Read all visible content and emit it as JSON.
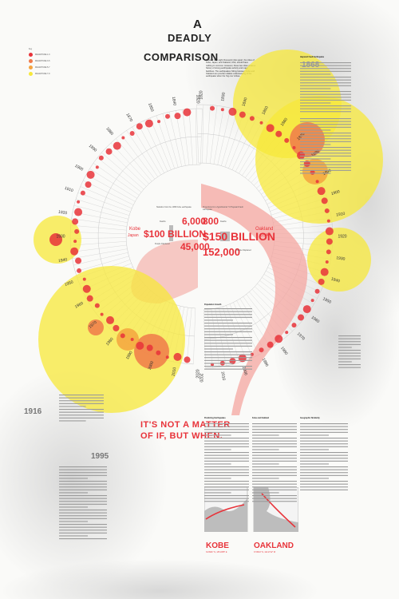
{
  "title": {
    "line1": "A",
    "line2": "DEADLY",
    "line3": "COMPARISON"
  },
  "legend": {
    "heading": "Key",
    "items": [
      {
        "label": "MAGNITUDE 1-3",
        "color": "#e8333a"
      },
      {
        "label": "MAGNITUDE 3-5",
        "color": "#f07a4a"
      },
      {
        "label": "MAGNITUDE 5-7",
        "color": "#f5a440"
      },
      {
        "label": "MAGNITUDE 7-9",
        "color": "#f7e83a"
      }
    ]
  },
  "left_years": [
    "1820",
    "1840",
    "1850",
    "1870",
    "1880",
    "1890",
    "1900",
    "1910",
    "1920",
    "1930",
    "1940",
    "1950",
    "1960",
    "1970",
    "1980",
    "1990",
    "2000",
    "2010",
    "2020"
  ],
  "right_years": [
    "1820",
    "1830",
    "1840",
    "1850",
    "1860",
    "1870",
    "1880",
    "1890",
    "1900",
    "1910",
    "1920",
    "1930",
    "1940",
    "1950",
    "1960",
    "1970",
    "1980",
    "1990",
    "2000",
    "2010",
    "2020"
  ],
  "kobe": {
    "city": "Kobe",
    "country": "Japan",
    "deaths_label": "Deaths",
    "deaths": "6,000",
    "damages_label": "In Damages",
    "damages": "$100 BILLION",
    "displaced_label": "People Displaced",
    "displaced": "45,000",
    "intro": "Statistics from the 1995 Kobe earthquake"
  },
  "oakland": {
    "city": "Oakland",
    "country": "USA",
    "deaths_label": "Deaths",
    "deaths": "800",
    "damages_label": "In Damages",
    "damages": "$150 BILLION",
    "displaced_label": "People Displaced",
    "displaced": "152,000",
    "intro": "Projections for a hypothetical 7.0 Hayward Fault earthquake"
  },
  "tagline": {
    "line1": "IT'S NOT A MATTER",
    "line2": "OF IF, BUT WHEN."
  },
  "year_left": "1916",
  "year_right": "1868",
  "year_bottom": "1995",
  "map_labels": {
    "kobe": "KOBE",
    "oakland": "OAKLAND",
    "kobe_coords": "34.6901° N, 135.1955° E",
    "oakland_coords": "37.8044° N, 122.2712° W"
  },
  "section_heads": {
    "a": "Predicting Earthquakes",
    "b": "Kobe and Oakland",
    "c": "Geographic Similarity",
    "d": "Hayward Fault Earthquake",
    "e": "Population Growth"
  },
  "intro_text": "Located over eight thousand miles apart, the cities of Kobe, Japan, and Oakland, USA, should have nothing in common. However, these two cities share a history of strong earthquake activity and major faultlines. The earthquakes hitting between Kobe and Oakland can provide reliable understanding of the earthquake when the 'big one' strikes."
}
